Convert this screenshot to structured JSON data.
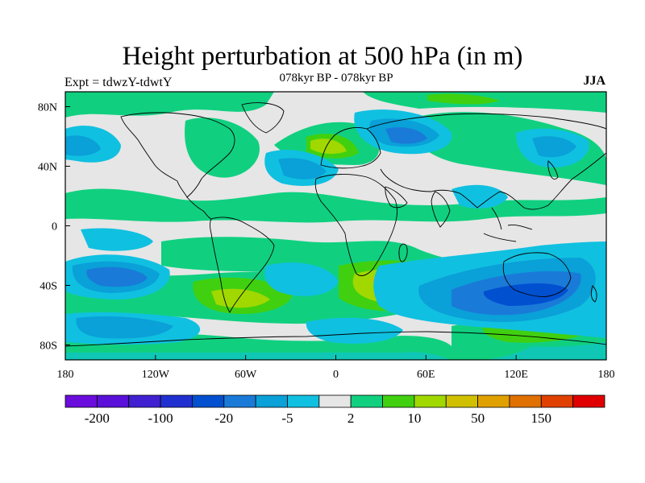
{
  "title": "Height perturbation at 500 hPa (in m)",
  "left_label": "Expt = tdwzY-tdwtY",
  "center_label": "078kyr BP - 078kyr BP",
  "right_label": "JJA",
  "map": {
    "projection": "cylindrical-equidistant",
    "lon_range": [
      -180,
      180
    ],
    "lat_range": [
      -90,
      90
    ],
    "background_color": "#e6e6e6",
    "lon_ticks": [
      {
        "value": -180,
        "label": "180"
      },
      {
        "value": -120,
        "label": "120W"
      },
      {
        "value": -60,
        "label": "60W"
      },
      {
        "value": 0,
        "label": "0"
      },
      {
        "value": 60,
        "label": "60E"
      },
      {
        "value": 120,
        "label": "120E"
      },
      {
        "value": 180,
        "label": "180"
      }
    ],
    "lat_ticks": [
      {
        "value": 80,
        "label": "80N"
      },
      {
        "value": 40,
        "label": "40N"
      },
      {
        "value": 0,
        "label": "0"
      },
      {
        "value": -40,
        "label": "40S"
      },
      {
        "value": -80,
        "label": "80S"
      }
    ]
  },
  "colorbar": {
    "colors": [
      "#6a0ddc",
      "#5a10d8",
      "#4020d0",
      "#2030d0",
      "#0050d0",
      "#1a7ad8",
      "#0aa0d8",
      "#10c0e0",
      "#e6e6e6",
      "#10d080",
      "#40d010",
      "#a0d800",
      "#d0c000",
      "#e0a000",
      "#e07000",
      "#e04000",
      "#e00000"
    ],
    "labels": [
      {
        "boundary": 1,
        "text": "-200"
      },
      {
        "boundary": 3,
        "text": "-100"
      },
      {
        "boundary": 5,
        "text": "-20"
      },
      {
        "boundary": 7,
        "text": "-5"
      },
      {
        "boundary": 9,
        "text": "2"
      },
      {
        "boundary": 11,
        "text": "10"
      },
      {
        "boundary": 13,
        "text": "50"
      },
      {
        "boundary": 15,
        "text": "150"
      }
    ]
  }
}
